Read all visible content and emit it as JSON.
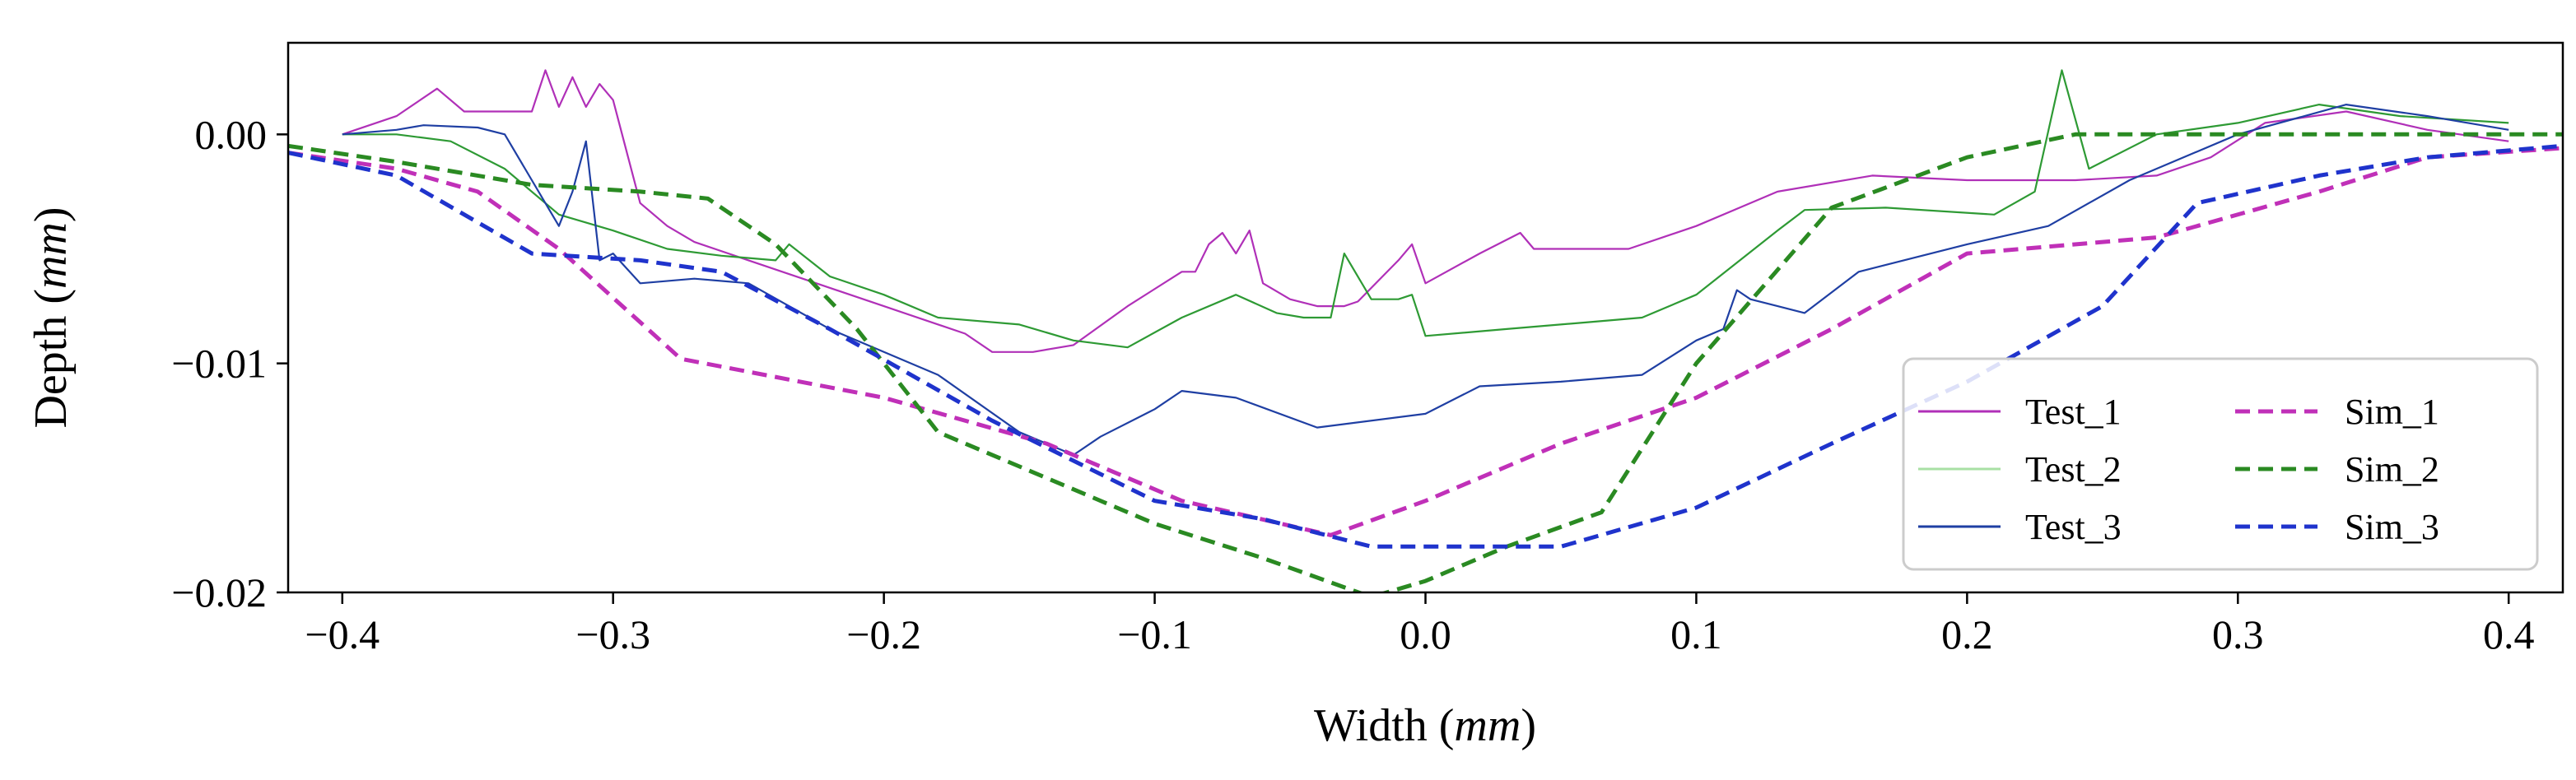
{
  "chart_data": {
    "type": "line",
    "title": "",
    "xlabel": "Width",
    "xlabel_unit": "mm",
    "ylabel": "Depth",
    "ylabel_unit": "mm",
    "xlim": [
      -0.42,
      0.42
    ],
    "ylim": [
      -0.02,
      0.004
    ],
    "xticks": [
      -0.4,
      -0.3,
      -0.2,
      -0.1,
      0.0,
      0.1,
      0.2,
      0.3,
      0.4
    ],
    "xtick_labels": [
      "−0.4",
      "−0.3",
      "−0.2",
      "−0.1",
      "0.0",
      "0.1",
      "0.2",
      "0.3",
      "0.4"
    ],
    "yticks": [
      0.0,
      -0.01,
      -0.02
    ],
    "ytick_labels": [
      "0.00",
      "−0.01",
      "−0.02"
    ],
    "grid": false,
    "legend_position": "bottom-right",
    "legend_columns": 2,
    "series": [
      {
        "name": "Test_1",
        "color": "#b030b8",
        "style": "solid",
        "x": [
          -0.4,
          -0.38,
          -0.365,
          -0.355,
          -0.33,
          -0.325,
          -0.32,
          -0.315,
          -0.31,
          -0.305,
          -0.3,
          -0.29,
          -0.28,
          -0.27,
          -0.25,
          -0.23,
          -0.2,
          -0.17,
          -0.16,
          -0.145,
          -0.13,
          -0.11,
          -0.09,
          -0.085,
          -0.08,
          -0.075,
          -0.07,
          -0.065,
          -0.06,
          -0.05,
          -0.04,
          -0.03,
          -0.025,
          -0.01,
          -0.005,
          0.0,
          0.02,
          0.035,
          0.04,
          0.06,
          0.075,
          0.1,
          0.13,
          0.165,
          0.2,
          0.24,
          0.27,
          0.29,
          0.31,
          0.34,
          0.37,
          0.4
        ],
        "y": [
          0.0,
          0.0008,
          0.002,
          0.001,
          0.001,
          0.0028,
          0.0012,
          0.0025,
          0.0012,
          0.0022,
          0.0015,
          -0.003,
          -0.004,
          -0.0047,
          -0.0055,
          -0.0063,
          -0.0075,
          -0.0087,
          -0.0095,
          -0.0095,
          -0.0092,
          -0.0075,
          -0.006,
          -0.006,
          -0.0048,
          -0.0043,
          -0.0052,
          -0.0042,
          -0.0065,
          -0.0072,
          -0.0075,
          -0.0075,
          -0.0073,
          -0.0055,
          -0.0048,
          -0.0065,
          -0.0052,
          -0.0043,
          -0.005,
          -0.005,
          -0.005,
          -0.004,
          -0.0025,
          -0.0018,
          -0.002,
          -0.002,
          -0.0018,
          -0.001,
          0.0005,
          0.001,
          0.0002,
          -0.0003
        ]
      },
      {
        "name": "Test_2",
        "color": "#2e9a34",
        "style": "solid",
        "x": [
          -0.4,
          -0.38,
          -0.36,
          -0.34,
          -0.32,
          -0.3,
          -0.28,
          -0.26,
          -0.24,
          -0.235,
          -0.22,
          -0.2,
          -0.18,
          -0.15,
          -0.13,
          -0.11,
          -0.09,
          -0.07,
          -0.055,
          -0.045,
          -0.035,
          -0.03,
          -0.02,
          -0.01,
          -0.005,
          0.0,
          0.03,
          0.06,
          0.08,
          0.1,
          0.13,
          0.14,
          0.17,
          0.21,
          0.225,
          0.235,
          0.245,
          0.27,
          0.3,
          0.33,
          0.36,
          0.4
        ],
        "y": [
          0.0,
          0.0,
          -0.0003,
          -0.0015,
          -0.0035,
          -0.0042,
          -0.005,
          -0.0053,
          -0.0055,
          -0.0048,
          -0.0062,
          -0.007,
          -0.008,
          -0.0083,
          -0.009,
          -0.0093,
          -0.008,
          -0.007,
          -0.0078,
          -0.008,
          -0.008,
          -0.0052,
          -0.0072,
          -0.0072,
          -0.007,
          -0.0088,
          -0.0085,
          -0.0082,
          -0.008,
          -0.007,
          -0.0042,
          -0.0033,
          -0.0032,
          -0.0035,
          -0.0025,
          0.0028,
          -0.0015,
          0.0,
          0.0005,
          0.0013,
          0.0008,
          0.0005
        ]
      },
      {
        "name": "Test_3",
        "color": "#1f3fa3",
        "style": "solid",
        "x": [
          -0.4,
          -0.38,
          -0.37,
          -0.35,
          -0.34,
          -0.33,
          -0.32,
          -0.315,
          -0.31,
          -0.305,
          -0.3,
          -0.29,
          -0.27,
          -0.25,
          -0.22,
          -0.18,
          -0.15,
          -0.13,
          -0.12,
          -0.1,
          -0.09,
          -0.07,
          -0.04,
          0.0,
          0.02,
          0.05,
          0.08,
          0.1,
          0.11,
          0.115,
          0.12,
          0.14,
          0.16,
          0.2,
          0.23,
          0.26,
          0.3,
          0.34,
          0.37,
          0.4
        ],
        "y": [
          0.0,
          0.0002,
          0.0004,
          0.0003,
          0.0,
          -0.002,
          -0.004,
          -0.0025,
          -0.0003,
          -0.0055,
          -0.0052,
          -0.0065,
          -0.0063,
          -0.0065,
          -0.0085,
          -0.0105,
          -0.013,
          -0.014,
          -0.0132,
          -0.012,
          -0.0112,
          -0.0115,
          -0.0128,
          -0.0122,
          -0.011,
          -0.0108,
          -0.0105,
          -0.009,
          -0.0085,
          -0.0068,
          -0.0072,
          -0.0078,
          -0.006,
          -0.0048,
          -0.004,
          -0.002,
          0.0,
          0.0013,
          0.0008,
          0.0002
        ]
      },
      {
        "name": "Sim_1",
        "color": "#c030b8",
        "style": "dashed",
        "x": [
          -0.42,
          -0.38,
          -0.35,
          -0.32,
          -0.275,
          -0.2,
          -0.14,
          -0.09,
          -0.035,
          0.0,
          0.05,
          0.1,
          0.15,
          0.2,
          0.27,
          0.33,
          0.37,
          0.42
        ],
        "y": [
          -0.0008,
          -0.0015,
          -0.0025,
          -0.005,
          -0.0098,
          -0.0115,
          -0.0135,
          -0.016,
          -0.0175,
          -0.016,
          -0.0135,
          -0.0115,
          -0.0085,
          -0.0052,
          -0.0045,
          -0.0025,
          -0.001,
          -0.0006
        ]
      },
      {
        "name": "Sim_2",
        "color": "#2a8a22",
        "style": "dashed",
        "x": [
          -0.42,
          -0.38,
          -0.33,
          -0.29,
          -0.265,
          -0.24,
          -0.21,
          -0.18,
          -0.14,
          -0.1,
          -0.06,
          -0.02,
          0.0,
          0.03,
          0.065,
          0.1,
          0.15,
          0.2,
          0.24,
          0.27,
          0.3,
          0.34,
          0.42
        ],
        "y": [
          -0.0005,
          -0.0012,
          -0.0022,
          -0.0025,
          -0.0028,
          -0.0048,
          -0.0085,
          -0.013,
          -0.015,
          -0.017,
          -0.0185,
          -0.0202,
          -0.0195,
          -0.018,
          -0.0165,
          -0.01,
          -0.0032,
          -0.001,
          0.0,
          0.0,
          0.0,
          0.0,
          0.0
        ]
      },
      {
        "name": "Sim_3",
        "color": "#1f33cc",
        "style": "dashed",
        "x": [
          -0.42,
          -0.38,
          -0.33,
          -0.29,
          -0.26,
          -0.22,
          -0.16,
          -0.1,
          -0.06,
          -0.02,
          0.02,
          0.05,
          0.1,
          0.15,
          0.2,
          0.25,
          0.285,
          0.33,
          0.37,
          0.42
        ],
        "y": [
          -0.0008,
          -0.0018,
          -0.0052,
          -0.0055,
          -0.006,
          -0.0085,
          -0.0125,
          -0.016,
          -0.0168,
          -0.018,
          -0.018,
          -0.018,
          -0.0163,
          -0.0135,
          -0.0108,
          -0.0075,
          -0.003,
          -0.0018,
          -0.001,
          -0.0005
        ]
      }
    ]
  }
}
